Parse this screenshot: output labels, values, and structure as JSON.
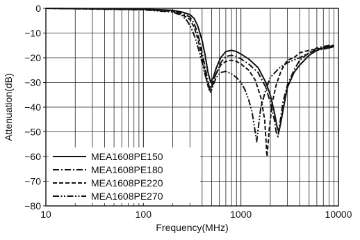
{
  "chart_data": {
    "type": "line",
    "xlabel": "Frequency(MHz)",
    "ylabel": "Attenuation(dB)",
    "x_scale": "log",
    "xlim": [
      10,
      10000
    ],
    "ylim": [
      -80,
      0
    ],
    "grid": true,
    "legend_position": "bottom-left",
    "x_ticks": [
      10,
      100,
      1000,
      10000
    ],
    "x_tick_labels": [
      "10",
      "100",
      "1000",
      "10000"
    ],
    "y_ticks": [
      0,
      -10,
      -20,
      -30,
      -40,
      -50,
      -60,
      -70,
      -80
    ],
    "y_tick_labels": [
      "0",
      "−10",
      "−20",
      "−30",
      "−40",
      "−50",
      "−60",
      "−70",
      "−80"
    ],
    "series": [
      {
        "name": "MEA1608PE150",
        "style": "solid",
        "color": "#111111",
        "x": [
          10,
          100,
          200,
          250,
          300,
          330,
          360,
          400,
          430,
          460,
          490,
          520,
          560,
          620,
          700,
          800,
          900,
          1000,
          1200,
          1500,
          1800,
          2000,
          2200,
          2350,
          2450,
          2600,
          2800,
          3000,
          3500,
          4000,
          5000,
          6000,
          7000,
          8000,
          9000
        ],
        "y": [
          0,
          -0.3,
          -0.8,
          -1.5,
          -2.5,
          -4,
          -7,
          -13,
          -19,
          -26,
          -30,
          -28,
          -24,
          -20,
          -17.5,
          -17,
          -17.5,
          -18.5,
          -20.5,
          -24,
          -30,
          -35,
          -42,
          -48,
          -50,
          -45,
          -38,
          -32,
          -26,
          -23,
          -19,
          -17,
          -16,
          -15.5,
          -15
        ]
      },
      {
        "name": "MEA1608PE180",
        "style": "dashdot",
        "color": "#111111",
        "x": [
          10,
          100,
          200,
          250,
          300,
          330,
          360,
          390,
          420,
          450,
          480,
          510,
          550,
          620,
          700,
          800,
          900,
          1000,
          1200,
          1500,
          1800,
          2000,
          2200,
          2300,
          2400,
          2500,
          2700,
          3000,
          3500,
          4000,
          5000,
          6000,
          7000,
          8000,
          9000
        ],
        "y": [
          0,
          -0.4,
          -1,
          -2,
          -3.5,
          -6,
          -10,
          -16,
          -22,
          -28,
          -33,
          -31,
          -27,
          -22,
          -19.5,
          -19,
          -19.5,
          -20.5,
          -22.5,
          -26,
          -32,
          -38,
          -45,
          -50,
          -52,
          -47,
          -38,
          -31,
          -25,
          -21,
          -18,
          -16,
          -15.5,
          -15,
          -15
        ]
      },
      {
        "name": "MEA1608PE220",
        "style": "dashed",
        "color": "#111111",
        "x": [
          10,
          100,
          200,
          250,
          300,
          330,
          360,
          390,
          420,
          450,
          470,
          500,
          550,
          620,
          700,
          800,
          900,
          1000,
          1200,
          1400,
          1600,
          1750,
          1850,
          1950,
          2100,
          2300,
          2600,
          3000,
          3500,
          4000,
          5000,
          6000,
          7000,
          8000,
          9000
        ],
        "y": [
          0,
          -0.5,
          -1.2,
          -2.5,
          -4.5,
          -7.5,
          -12,
          -18,
          -24,
          -30,
          -33,
          -31,
          -27,
          -23,
          -21.5,
          -21,
          -21.5,
          -22.5,
          -25,
          -29,
          -36,
          -45,
          -60,
          -49,
          -38,
          -31,
          -25,
          -21,
          -20,
          -18,
          -17,
          -16.5,
          -16,
          -16,
          -15.5
        ]
      },
      {
        "name": "MEA1608PE270",
        "style": "dashdotdot",
        "color": "#111111",
        "x": [
          10,
          100,
          200,
          250,
          280,
          310,
          340,
          370,
          400,
          430,
          460,
          490,
          520,
          560,
          620,
          700,
          800,
          900,
          1000,
          1100,
          1200,
          1300,
          1400,
          1450,
          1500,
          1600,
          1800,
          2000,
          2500,
          3000,
          4000,
          5000,
          6000,
          7000,
          8000,
          9000
        ],
        "y": [
          0,
          -0.6,
          -1.5,
          -3,
          -5,
          -8,
          -12,
          -17,
          -22,
          -27,
          -31,
          -34,
          -31,
          -28,
          -26,
          -25.5,
          -26.5,
          -28,
          -30,
          -33,
          -37,
          -42,
          -50,
          -54,
          -49,
          -40,
          -33,
          -28,
          -24,
          -22,
          -20,
          -18,
          -17,
          -16.5,
          -16,
          -15.5
        ]
      }
    ]
  }
}
